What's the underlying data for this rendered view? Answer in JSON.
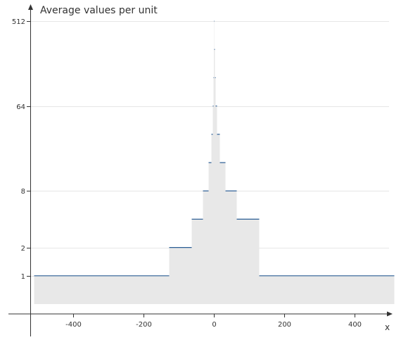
{
  "chart_data": {
    "type": "area",
    "title": "Average values per unit",
    "xlabel": "x",
    "ylabel": "",
    "y_scale": "log2",
    "xlim": [
      -512,
      512
    ],
    "ylim": [
      0.5,
      512
    ],
    "x_ticks": [
      -400,
      -200,
      0,
      200,
      400
    ],
    "x_tick_labels": [
      "-400",
      "-200",
      "0",
      "200",
      "400"
    ],
    "y_ticks": [
      1,
      2,
      8,
      64,
      512
    ],
    "y_tick_labels": [
      "1",
      "2",
      "8",
      "64",
      "512"
    ],
    "grid": "horizontal",
    "fill_color": "#e8e8e8",
    "line_color": "#2a5d94",
    "series": [
      {
        "segments": [
          {
            "x0": -512,
            "x1": -128,
            "y": 1
          },
          {
            "x0": -128,
            "x1": -64,
            "y": 2
          },
          {
            "x0": -64,
            "x1": -32,
            "y": 4
          },
          {
            "x0": -32,
            "x1": -16,
            "y": 8
          },
          {
            "x0": -16,
            "x1": -8,
            "y": 16
          },
          {
            "x0": -8,
            "x1": -4,
            "y": 32
          },
          {
            "x0": -4,
            "x1": -2,
            "y": 64
          },
          {
            "x0": -2,
            "x1": -1,
            "y": 128
          },
          {
            "x0": -1,
            "x1": 0,
            "y": 256
          },
          {
            "x0": 0,
            "x1": 1,
            "y": 512
          },
          {
            "x0": 1,
            "x1": 2,
            "y": 256
          },
          {
            "x0": 2,
            "x1": 4,
            "y": 128
          },
          {
            "x0": 4,
            "x1": 8,
            "y": 64
          },
          {
            "x0": 8,
            "x1": 16,
            "y": 32
          },
          {
            "x0": 16,
            "x1": 32,
            "y": 16
          },
          {
            "x0": 32,
            "x1": 64,
            "y": 8
          },
          {
            "x0": 64,
            "x1": 128,
            "y": 4
          },
          {
            "x0": 128,
            "x1": 512,
            "y": 1
          }
        ]
      }
    ]
  }
}
